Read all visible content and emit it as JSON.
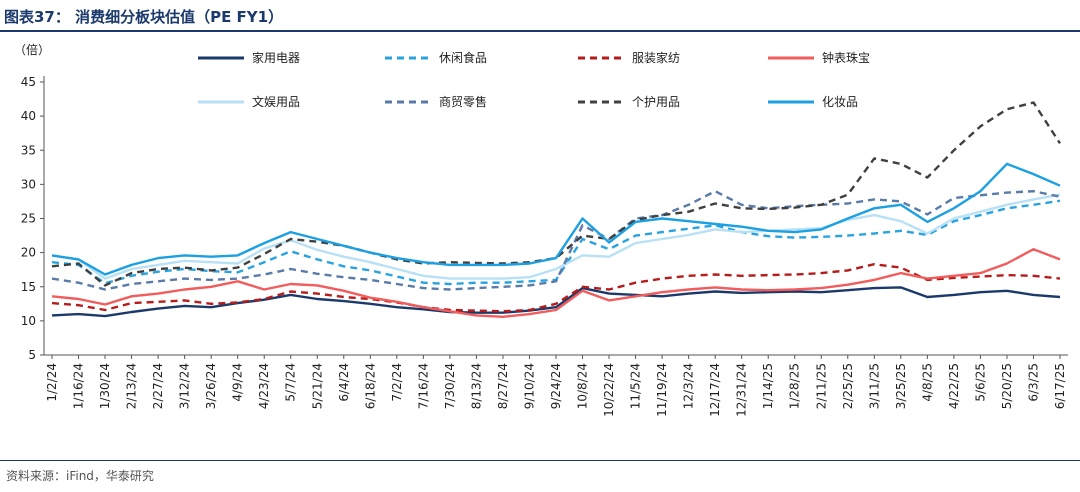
{
  "header": {
    "title": "图表37： 消费细分板块估值（PE FY1）"
  },
  "footer": {
    "source": "资料来源：iFind，华泰研究"
  },
  "chart_data": {
    "type": "line",
    "title": "消费细分板块估值（PE FY1）",
    "ylabel": "（倍）",
    "xlabel": "",
    "ylim": [
      5,
      45
    ],
    "yticks": [
      5,
      10,
      15,
      20,
      25,
      30,
      35,
      40,
      45
    ],
    "x": [
      "1/2/24",
      "1/16/24",
      "1/30/24",
      "2/13/24",
      "2/27/24",
      "3/12/24",
      "3/26/24",
      "4/9/24",
      "4/23/24",
      "5/7/24",
      "5/21/24",
      "6/4/24",
      "6/18/24",
      "7/2/24",
      "7/16/24",
      "7/30/24",
      "8/13/24",
      "8/27/24",
      "9/10/24",
      "9/24/24",
      "10/8/24",
      "10/22/24",
      "11/5/24",
      "11/19/24",
      "12/3/24",
      "12/17/24",
      "12/31/24",
      "1/14/25",
      "1/28/25",
      "2/11/25",
      "2/25/25",
      "3/11/25",
      "3/25/25",
      "4/8/25",
      "4/22/25",
      "5/6/25",
      "5/20/25",
      "6/3/25",
      "6/17/25"
    ],
    "legend_position": "top",
    "series": [
      {
        "name": "家用电器",
        "color": "#1b3a6b",
        "style": "solid",
        "values": [
          10.8,
          11,
          10.7,
          11.3,
          11.8,
          12.2,
          12,
          12.6,
          13.1,
          13.8,
          13.2,
          12.9,
          12.5,
          12,
          11.7,
          11.3,
          11.2,
          11.2,
          11.5,
          12,
          14.8,
          14,
          13.8,
          13.6,
          14,
          14.3,
          14.1,
          14.2,
          14.3,
          14.2,
          14.5,
          14.8,
          14.9,
          13.5,
          13.8,
          14.2,
          14.4,
          13.8,
          13.5
        ]
      },
      {
        "name": "休闲食品",
        "color": "#29a3e0",
        "style": "dash",
        "values": [
          18.6,
          18.2,
          15.5,
          16.6,
          17.2,
          17.6,
          17.3,
          17.1,
          18.6,
          20.2,
          19,
          18,
          17.4,
          16.5,
          15.6,
          15.4,
          15.6,
          15.6,
          15.8,
          16,
          22,
          20.5,
          22.5,
          23,
          23.5,
          24,
          23,
          22.4,
          22.2,
          22.3,
          22.5,
          22.8,
          23.2,
          22.6,
          24.6,
          25.5,
          26.5,
          27,
          27.6
        ]
      },
      {
        "name": "服装家纺",
        "color": "#b71c1c",
        "style": "dash",
        "values": [
          12.6,
          12.3,
          11.6,
          12.6,
          12.8,
          13,
          12.5,
          12.7,
          13.2,
          14.3,
          14,
          13.5,
          13.2,
          12.7,
          12,
          11.6,
          11.5,
          11.4,
          11.6,
          12.5,
          15,
          14.6,
          15.6,
          16.2,
          16.6,
          16.8,
          16.6,
          16.7,
          16.8,
          17,
          17.4,
          18.3,
          17.8,
          16,
          16.3,
          16.5,
          16.7,
          16.6,
          16.2
        ]
      },
      {
        "name": "钟表珠宝",
        "color": "#f25c5c",
        "style": "solid",
        "values": [
          13.6,
          13.2,
          12.4,
          13.6,
          14,
          14.6,
          15,
          15.8,
          14.6,
          15.4,
          15.2,
          14.4,
          13.4,
          12.8,
          12,
          11.4,
          10.8,
          10.6,
          11,
          11.6,
          14.4,
          13,
          13.6,
          14.2,
          14.6,
          14.9,
          14.6,
          14.5,
          14.6,
          14.8,
          15.3,
          16,
          17,
          16.2,
          16.6,
          17,
          18.4,
          20.5,
          19
        ]
      },
      {
        "name": "文娱用品",
        "color": "#b8e1f5",
        "style": "solid",
        "values": [
          19.6,
          19,
          16.2,
          17.6,
          18.2,
          18.8,
          18.6,
          18.4,
          20.6,
          21.8,
          20.4,
          19.4,
          18.6,
          17.6,
          16.6,
          16.2,
          16.2,
          16.2,
          16.4,
          17.6,
          19.6,
          19.4,
          21.4,
          22,
          22.6,
          23.4,
          23,
          23.2,
          23.4,
          23.6,
          24.8,
          25.5,
          24.6,
          22.8,
          25,
          26,
          27,
          27.8,
          28.5
        ]
      },
      {
        "name": "商贸零售",
        "color": "#5a7aa8",
        "style": "dash",
        "values": [
          16.2,
          15.6,
          14.6,
          15.4,
          15.8,
          16.2,
          16,
          16.2,
          16.8,
          17.6,
          16.9,
          16.4,
          16,
          15.4,
          14.8,
          14.6,
          14.8,
          15,
          15.2,
          15.8,
          24,
          22,
          25,
          25.5,
          27,
          29,
          27,
          26.5,
          26.8,
          27,
          27.2,
          27.8,
          27.5,
          25.6,
          28,
          28.4,
          28.8,
          29,
          28.2
        ]
      },
      {
        "name": "个护用品",
        "color": "#404040",
        "style": "dash",
        "values": [
          18,
          18.4,
          15.2,
          17,
          17.6,
          17.8,
          17.4,
          17.8,
          19.8,
          22,
          21.6,
          21,
          20,
          19,
          18.4,
          18.6,
          18.5,
          18.4,
          18.6,
          19.2,
          22.5,
          22,
          24.8,
          25.5,
          26,
          27.2,
          26.5,
          26.4,
          26.6,
          27,
          28.5,
          33.8,
          33,
          31,
          35,
          38.5,
          41,
          42,
          36
        ]
      },
      {
        "name": "化妆品",
        "color": "#1ba0e2",
        "style": "solid",
        "values": [
          19.6,
          19,
          16.8,
          18.2,
          19.2,
          19.6,
          19.4,
          19.6,
          21.4,
          23,
          22,
          21,
          20,
          19.2,
          18.6,
          18.2,
          18.2,
          18.2,
          18.4,
          19.2,
          25,
          21.5,
          24.5,
          25,
          24.6,
          24.2,
          23.8,
          23.2,
          23,
          23.4,
          25,
          26.5,
          27,
          24.5,
          26.5,
          29,
          33,
          31.5,
          29.8
        ]
      }
    ]
  }
}
